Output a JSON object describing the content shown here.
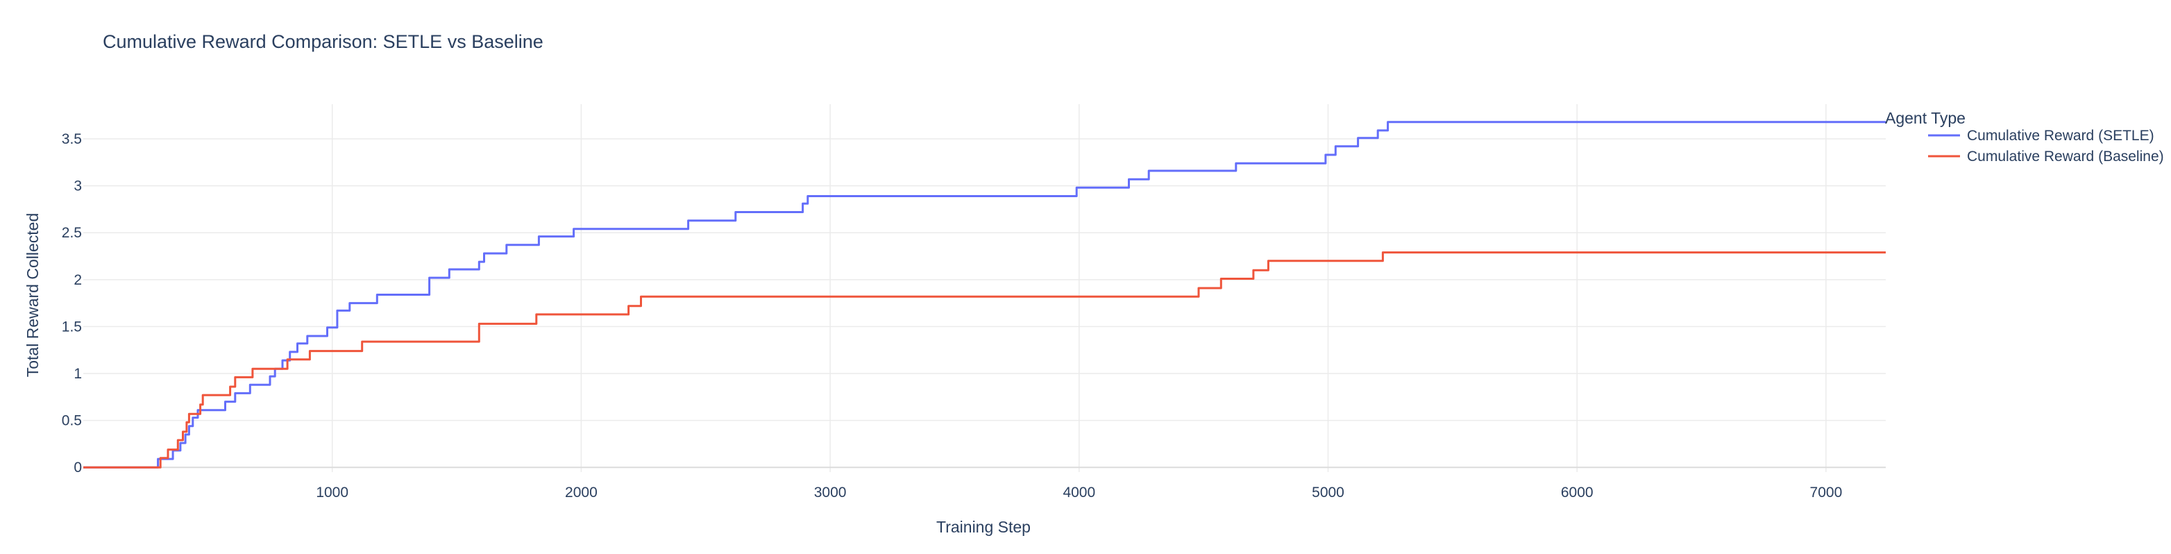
{
  "chart_data": {
    "type": "line",
    "title": "Cumulative Reward Comparison: SETLE vs Baseline",
    "xlabel": "Training Step",
    "ylabel": "Total Reward Collected",
    "xlim": [
      0,
      7240
    ],
    "ylim": [
      -0.05,
      3.87
    ],
    "xticks": [
      1000,
      2000,
      3000,
      4000,
      5000,
      6000,
      7000
    ],
    "xtick_labels": [
      "1000",
      "2000",
      "3000",
      "4000",
      "5000",
      "6000",
      "7000"
    ],
    "yticks": [
      0,
      0.5,
      1,
      1.5,
      2,
      2.5,
      3,
      3.5
    ],
    "ytick_labels": [
      "0",
      "0.5",
      "1",
      "1.5",
      "2",
      "2.5",
      "3",
      "3.5"
    ],
    "grid": true,
    "line_shape": "step",
    "legend": {
      "title": "Agent Type",
      "position": "right"
    },
    "series": [
      {
        "name": "Cumulative Reward (SETLE)",
        "color": "#636efa",
        "points": [
          [
            0,
            0
          ],
          [
            300,
            0
          ],
          [
            300,
            0.09
          ],
          [
            360,
            0.09
          ],
          [
            360,
            0.18
          ],
          [
            390,
            0.18
          ],
          [
            390,
            0.26
          ],
          [
            410,
            0.26
          ],
          [
            410,
            0.35
          ],
          [
            425,
            0.35
          ],
          [
            425,
            0.44
          ],
          [
            440,
            0.44
          ],
          [
            440,
            0.53
          ],
          [
            460,
            0.53
          ],
          [
            460,
            0.61
          ],
          [
            570,
            0.61
          ],
          [
            570,
            0.7
          ],
          [
            610,
            0.7
          ],
          [
            610,
            0.79
          ],
          [
            670,
            0.79
          ],
          [
            670,
            0.88
          ],
          [
            750,
            0.88
          ],
          [
            750,
            0.97
          ],
          [
            770,
            0.97
          ],
          [
            770,
            1.05
          ],
          [
            800,
            1.05
          ],
          [
            800,
            1.14
          ],
          [
            830,
            1.14
          ],
          [
            830,
            1.23
          ],
          [
            860,
            1.23
          ],
          [
            860,
            1.32
          ],
          [
            900,
            1.32
          ],
          [
            900,
            1.4
          ],
          [
            980,
            1.4
          ],
          [
            980,
            1.49
          ],
          [
            1020,
            1.49
          ],
          [
            1020,
            1.67
          ],
          [
            1070,
            1.67
          ],
          [
            1070,
            1.75
          ],
          [
            1180,
            1.75
          ],
          [
            1180,
            1.84
          ],
          [
            1390,
            1.84
          ],
          [
            1390,
            2.02
          ],
          [
            1470,
            2.02
          ],
          [
            1470,
            2.11
          ],
          [
            1590,
            2.11
          ],
          [
            1590,
            2.19
          ],
          [
            1610,
            2.19
          ],
          [
            1610,
            2.28
          ],
          [
            1700,
            2.28
          ],
          [
            1700,
            2.37
          ],
          [
            1830,
            2.37
          ],
          [
            1830,
            2.46
          ],
          [
            1970,
            2.46
          ],
          [
            1970,
            2.54
          ],
          [
            2430,
            2.54
          ],
          [
            2430,
            2.63
          ],
          [
            2620,
            2.63
          ],
          [
            2620,
            2.72
          ],
          [
            2890,
            2.72
          ],
          [
            2890,
            2.81
          ],
          [
            2910,
            2.81
          ],
          [
            2910,
            2.89
          ],
          [
            3990,
            2.89
          ],
          [
            3990,
            2.98
          ],
          [
            4200,
            2.98
          ],
          [
            4200,
            3.07
          ],
          [
            4280,
            3.07
          ],
          [
            4280,
            3.16
          ],
          [
            4630,
            3.16
          ],
          [
            4630,
            3.24
          ],
          [
            4990,
            3.24
          ],
          [
            4990,
            3.33
          ],
          [
            5030,
            3.33
          ],
          [
            5030,
            3.42
          ],
          [
            5120,
            3.42
          ],
          [
            5120,
            3.51
          ],
          [
            5200,
            3.51
          ],
          [
            5200,
            3.59
          ],
          [
            5240,
            3.59
          ],
          [
            5240,
            3.68
          ],
          [
            7240,
            3.68
          ]
        ]
      },
      {
        "name": "Cumulative Reward (Baseline)",
        "color": "#ef553b",
        "points": [
          [
            0,
            0
          ],
          [
            310,
            0
          ],
          [
            310,
            0.1
          ],
          [
            340,
            0.1
          ],
          [
            340,
            0.19
          ],
          [
            380,
            0.19
          ],
          [
            380,
            0.29
          ],
          [
            400,
            0.29
          ],
          [
            400,
            0.38
          ],
          [
            415,
            0.38
          ],
          [
            415,
            0.48
          ],
          [
            425,
            0.48
          ],
          [
            425,
            0.57
          ],
          [
            470,
            0.57
          ],
          [
            470,
            0.67
          ],
          [
            480,
            0.67
          ],
          [
            480,
            0.77
          ],
          [
            590,
            0.77
          ],
          [
            590,
            0.86
          ],
          [
            610,
            0.86
          ],
          [
            610,
            0.96
          ],
          [
            680,
            0.96
          ],
          [
            680,
            1.05
          ],
          [
            820,
            1.05
          ],
          [
            820,
            1.15
          ],
          [
            910,
            1.15
          ],
          [
            910,
            1.24
          ],
          [
            1120,
            1.24
          ],
          [
            1120,
            1.34
          ],
          [
            1590,
            1.34
          ],
          [
            1590,
            1.53
          ],
          [
            1820,
            1.53
          ],
          [
            1820,
            1.63
          ],
          [
            2190,
            1.63
          ],
          [
            2190,
            1.72
          ],
          [
            2240,
            1.72
          ],
          [
            2240,
            1.82
          ],
          [
            4480,
            1.82
          ],
          [
            4480,
            1.91
          ],
          [
            4570,
            1.91
          ],
          [
            4570,
            2.01
          ],
          [
            4700,
            2.01
          ],
          [
            4700,
            2.1
          ],
          [
            4760,
            2.1
          ],
          [
            4760,
            2.2
          ],
          [
            5220,
            2.2
          ],
          [
            5220,
            2.29
          ],
          [
            7240,
            2.29
          ]
        ]
      }
    ]
  }
}
